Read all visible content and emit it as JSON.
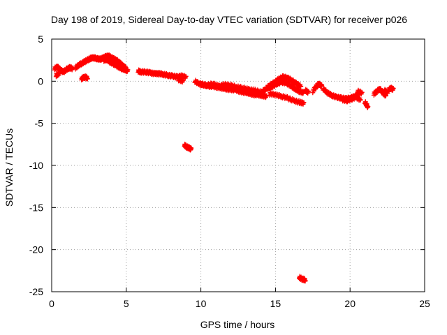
{
  "chart_data": {
    "type": "scatter",
    "title": "Day 198 of 2019, Sidereal Day-to-day VTEC variation (SDTVAR) for receiver p026",
    "xlabel": "GPS time / hours",
    "ylabel": "SDTVAR / TECUs",
    "xlim": [
      0,
      25
    ],
    "ylim": [
      -25,
      5
    ],
    "xticks": [
      0,
      5,
      10,
      15,
      20,
      25
    ],
    "yticks": [
      5,
      0,
      -5,
      -10,
      -15,
      -20,
      -25
    ],
    "grid": true,
    "legend": "none",
    "marker": "plus",
    "color": "#ff0000",
    "segments": [
      {
        "x": [
          0.2,
          0.4,
          0.6,
          0.8,
          1.0,
          1.2,
          1.4
        ],
        "y": [
          1.5,
          1.7,
          1.3,
          1.1,
          1.4,
          1.6,
          1.5
        ]
      },
      {
        "x": [
          0.3,
          0.5
        ],
        "y": [
          0.7,
          0.9
        ]
      },
      {
        "x": [
          1.6,
          1.8,
          2.0,
          2.2,
          2.4,
          2.6,
          2.8,
          3.0,
          3.2,
          3.4,
          3.6,
          3.8,
          4.0,
          4.2,
          4.4,
          4.6,
          4.8,
          5.0
        ],
        "y": [
          1.6,
          1.9,
          2.1,
          2.3,
          2.5,
          2.7,
          2.8,
          2.7,
          2.6,
          2.7,
          2.9,
          3.0,
          2.8,
          2.6,
          2.4,
          2.1,
          1.8,
          1.5
        ]
      },
      {
        "x": [
          2.0,
          2.2,
          2.4
        ],
        "y": [
          0.3,
          0.5,
          0.4
        ]
      },
      {
        "x": [
          3.5,
          3.7,
          3.9,
          4.1,
          4.3,
          4.5,
          4.7,
          4.9,
          5.1
        ],
        "y": [
          2.5,
          2.6,
          2.3,
          2.1,
          1.9,
          1.7,
          1.5,
          1.4,
          1.2
        ]
      },
      {
        "x": [
          5.8,
          6.0,
          6.3,
          6.6,
          6.9,
          7.2,
          7.5,
          7.8,
          8.1,
          8.4,
          8.7,
          9.0
        ],
        "y": [
          1.2,
          1.1,
          1.1,
          1.0,
          0.9,
          0.9,
          0.8,
          0.7,
          0.6,
          0.5,
          0.6,
          0.5
        ]
      },
      {
        "x": [
          8.5,
          8.8
        ],
        "y": [
          0.2,
          0.0
        ]
      },
      {
        "x": [
          8.9,
          9.05,
          9.2,
          9.35
        ],
        "y": [
          -7.6,
          -7.8,
          -7.9,
          -8.1
        ]
      },
      {
        "x": [
          9.6,
          9.9,
          10.2,
          10.5,
          10.8,
          11.1,
          11.4,
          11.7,
          12.0,
          12.3,
          12.6,
          12.9,
          13.2,
          13.5,
          13.8,
          14.1,
          14.4
        ],
        "y": [
          0.0,
          -0.3,
          -0.4,
          -0.6,
          -0.6,
          -0.7,
          -0.8,
          -0.9,
          -1.0,
          -1.0,
          -1.2,
          -1.3,
          -1.4,
          -1.6,
          -1.6,
          -1.7,
          -1.8
        ]
      },
      {
        "x": [
          10.0,
          10.4,
          10.8,
          11.2,
          11.6,
          12.0,
          12.4,
          12.8,
          13.2,
          13.6,
          14.0
        ],
        "y": [
          -0.4,
          -0.5,
          -0.3,
          -0.6,
          -0.4,
          -0.5,
          -0.7,
          -0.8,
          -1.0,
          -1.1,
          -1.3
        ]
      },
      {
        "x": [
          14.0,
          14.3,
          14.6,
          14.9,
          15.2,
          15.5,
          15.8,
          16.1,
          16.4,
          16.7
        ],
        "y": [
          -1.4,
          -1.0,
          -0.5,
          -0.2,
          0.2,
          0.5,
          0.4,
          0.1,
          -0.3,
          -0.6
        ]
      },
      {
        "x": [
          14.5,
          14.8,
          15.1,
          15.4,
          15.7,
          16.0,
          16.3,
          16.6,
          16.9
        ],
        "y": [
          -0.9,
          -0.6,
          -0.3,
          -0.1,
          -0.2,
          -0.5,
          -0.9,
          -1.2,
          -1.4
        ]
      },
      {
        "x": [
          14.6,
          15.0,
          15.4,
          15.8,
          16.2,
          16.6,
          16.9
        ],
        "y": [
          -1.5,
          -1.6,
          -1.8,
          -2.0,
          -2.3,
          -2.5,
          -2.6
        ]
      },
      {
        "x": [
          16.6,
          16.8,
          17.0
        ],
        "y": [
          -23.3,
          -23.5,
          -23.6
        ]
      },
      {
        "x": [
          17.0,
          17.2
        ],
        "y": [
          -1.1,
          -1.3
        ]
      },
      {
        "x": [
          17.5,
          17.7,
          17.9,
          18.1
        ],
        "y": [
          -1.2,
          -0.7,
          -0.3,
          -0.6
        ]
      },
      {
        "x": [
          18.2,
          18.5,
          18.8,
          19.1,
          19.4,
          19.7,
          20.0,
          20.3,
          20.6
        ],
        "y": [
          -0.9,
          -1.4,
          -1.7,
          -1.9,
          -2.0,
          -2.1,
          -2.0,
          -1.8,
          -1.5
        ]
      },
      {
        "x": [
          19.5,
          19.8,
          20.1,
          20.4,
          20.7
        ],
        "y": [
          -2.2,
          -2.3,
          -2.1,
          -1.9,
          -2.2
        ]
      },
      {
        "x": [
          20.5,
          20.8
        ],
        "y": [
          -1.2,
          -1.4
        ]
      },
      {
        "x": [
          21.0,
          21.2
        ],
        "y": [
          -2.5,
          -3.1
        ]
      },
      {
        "x": [
          21.6,
          21.8,
          22.0,
          22.2,
          22.4
        ],
        "y": [
          -1.5,
          -1.2,
          -0.9,
          -1.4,
          -1.7
        ]
      },
      {
        "x": [
          22.3,
          22.5,
          22.7,
          22.9
        ],
        "y": [
          -1.1,
          -1.3,
          -0.8,
          -1.0
        ]
      }
    ]
  }
}
